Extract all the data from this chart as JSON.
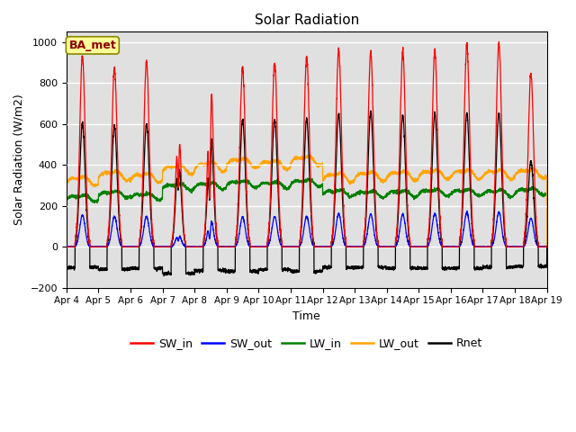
{
  "title": "Solar Radiation",
  "xlabel": "Time",
  "ylabel": "Solar Radiation (W/m2)",
  "ylim": [
    -200,
    1050
  ],
  "n_days": 15,
  "points_per_day": 288,
  "x_tick_labels": [
    "Apr 4",
    "Apr 5",
    "Apr 6",
    "Apr 7",
    "Apr 8",
    "Apr 9",
    "Apr 10",
    "Apr 11",
    "Apr 12",
    "Apr 13",
    "Apr 14",
    "Apr 15",
    "Apr 16",
    "Apr 17",
    "Apr 18",
    "Apr 19"
  ],
  "legend_labels": [
    "SW_in",
    "SW_out",
    "LW_in",
    "LW_out",
    "Rnet"
  ],
  "legend_colors": [
    "red",
    "blue",
    "green",
    "orange",
    "black"
  ],
  "annotation_text": "BA_met",
  "annotation_color": "#8B0000",
  "annotation_bg": "#FFFF99",
  "annotation_border": "#888800",
  "bg_color": "#E0E0E0",
  "sw_in_peaks": [
    930,
    870,
    905,
    585,
    855,
    870,
    900,
    925,
    960,
    950,
    955,
    960,
    985,
    990,
    845
  ],
  "sw_out_peaks": [
    155,
    148,
    148,
    60,
    142,
    145,
    148,
    148,
    162,
    160,
    158,
    162,
    168,
    168,
    140
  ],
  "lw_in_base": [
    240,
    260,
    248,
    295,
    300,
    310,
    305,
    315,
    265,
    260,
    262,
    268,
    268,
    265,
    272
  ],
  "lw_out_base": [
    325,
    352,
    342,
    382,
    395,
    415,
    405,
    425,
    342,
    348,
    352,
    358,
    358,
    358,
    362
  ],
  "rnet_peaks": [
    600,
    590,
    600,
    430,
    600,
    622,
    622,
    622,
    650,
    660,
    642,
    652,
    652,
    652,
    420
  ],
  "rnet_night_vals": [
    -100,
    -110,
    -105,
    -130,
    -115,
    -120,
    -110,
    -120,
    -100,
    -100,
    -105,
    -105,
    -105,
    -100,
    -95
  ],
  "figsize": [
    6.4,
    4.8
  ],
  "dpi": 100
}
